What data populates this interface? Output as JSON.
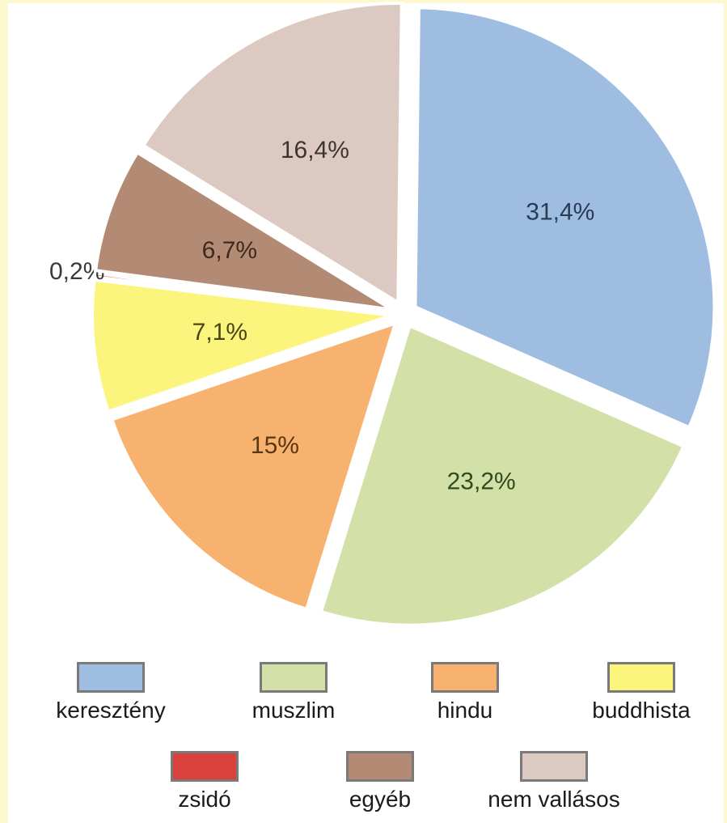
{
  "chart_data": {
    "type": "pie",
    "slices": [
      {
        "label": "keresztény",
        "value": 31.4,
        "value_label": "31,4%",
        "color": "#9fbde0",
        "label_color": "#2a3b57"
      },
      {
        "label": "muszlim",
        "value": 23.2,
        "value_label": "23,2%",
        "color": "#d3e1a9",
        "label_color": "#2f4a1f"
      },
      {
        "label": "hindu",
        "value": 15,
        "value_label": "15%",
        "color": "#f7b26f",
        "label_color": "#5a3612"
      },
      {
        "label": "buddhista",
        "value": 7.1,
        "value_label": "7,1%",
        "color": "#fbf57d",
        "label_color": "#4a4516"
      },
      {
        "label": "zsidó",
        "value": 0.2,
        "value_label": "0,2%",
        "color": "#d9413c",
        "label_color": "#3a3a3a"
      },
      {
        "label": "egyéb",
        "value": 6.7,
        "value_label": "6,7%",
        "color": "#b38b74",
        "label_color": "#3d2a1f"
      },
      {
        "label": "nem vallásos",
        "value": 16.4,
        "value_label": "16,4%",
        "color": "#dccac2",
        "label_color": "#3d3431"
      }
    ],
    "legend_position": "bottom"
  },
  "legend": {
    "items": [
      {
        "label": "keresztény",
        "color": "#9fbde0"
      },
      {
        "label": "muszlim",
        "color": "#d3e1a9"
      },
      {
        "label": "hindu",
        "color": "#f7b26f"
      },
      {
        "label": "buddhista",
        "color": "#fbf57d"
      },
      {
        "label": "zsidó",
        "color": "#d9413c"
      },
      {
        "label": "egyéb",
        "color": "#b38b74"
      },
      {
        "label": "nem vallásos",
        "color": "#dccac2"
      }
    ]
  }
}
